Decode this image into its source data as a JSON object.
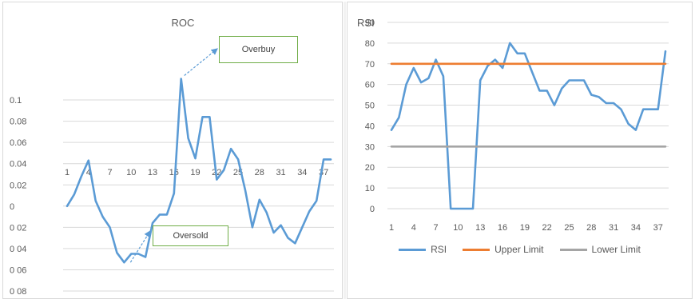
{
  "chart_data": [
    {
      "type": "line",
      "title": "ROC",
      "xlabel": "",
      "ylabel": "",
      "ylim": [
        -0.08,
        0.12
      ],
      "y_tick_values": [
        0.1,
        0.08,
        0.06,
        0.04,
        0.02,
        0,
        -0.02,
        -0.04,
        -0.06,
        -0.08
      ],
      "y_tick_labels": [
        "0.1",
        "0.08",
        "0.06",
        "0.04",
        "0.02",
        "0",
        "0 02",
        "0 04",
        "0 06",
        "0 08"
      ],
      "x_tick_labels": [
        "1",
        "4",
        "7",
        "10",
        "13",
        "16",
        "19",
        "22",
        "25",
        "28",
        "31",
        "34",
        "37"
      ],
      "grid": true,
      "series": [
        {
          "color": "#5b9bd5",
          "x": [
            1,
            2,
            3,
            4,
            5,
            6,
            7,
            8,
            9,
            10,
            11,
            12,
            13,
            14,
            15,
            16,
            17,
            18,
            19,
            20,
            21,
            22,
            23,
            24,
            25,
            26,
            27,
            28,
            29,
            30,
            31,
            32,
            33,
            34,
            35,
            36,
            37,
            38
          ],
          "values": [
            0.0,
            0.011,
            0.028,
            0.043,
            0.005,
            -0.01,
            -0.02,
            -0.044,
            -0.053,
            -0.045,
            -0.045,
            -0.048,
            -0.016,
            -0.008,
            -0.008,
            0.012,
            0.12,
            0.064,
            0.045,
            0.084,
            0.084,
            0.025,
            0.034,
            0.054,
            0.044,
            0.015,
            -0.02,
            0.006,
            -0.006,
            -0.025,
            -0.018,
            -0.03,
            -0.035,
            -0.02,
            -0.005,
            0.005,
            0.044,
            0.044
          ]
        }
      ],
      "annotations": [
        {
          "text": "Overbuy",
          "x": 17,
          "y": 0.12
        },
        {
          "text": "Oversold",
          "x": 9,
          "y": -0.053
        }
      ]
    },
    {
      "type": "line",
      "title": "RSI",
      "xlabel": "",
      "ylabel": "",
      "ylim": [
        0,
        90
      ],
      "y_tick_values": [
        0,
        10,
        20,
        30,
        40,
        50,
        60,
        70,
        80,
        90
      ],
      "y_tick_labels": [
        "0",
        "10",
        "20",
        "30",
        "40",
        "50",
        "60",
        "70",
        "80",
        "90"
      ],
      "x_tick_labels": [
        "1",
        "4",
        "7",
        "10",
        "13",
        "16",
        "19",
        "22",
        "25",
        "28",
        "31",
        "34",
        "37"
      ],
      "grid": true,
      "legend": "bottom",
      "series": [
        {
          "name": "RSI",
          "color": "#5b9bd5",
          "x": [
            1,
            2,
            3,
            4,
            5,
            6,
            7,
            8,
            9,
            10,
            11,
            12,
            13,
            14,
            15,
            16,
            17,
            18,
            19,
            20,
            21,
            22,
            23,
            24,
            25,
            26,
            27,
            28,
            29,
            30,
            31,
            32,
            33,
            34,
            35,
            36,
            37,
            38
          ],
          "values": [
            38,
            44,
            60,
            68,
            61,
            63,
            72,
            64,
            0,
            0,
            0,
            0,
            62,
            69,
            72,
            68,
            80,
            75,
            75,
            66,
            57,
            57,
            50,
            58,
            62,
            62,
            62,
            55,
            54,
            51,
            51,
            48,
            41,
            38,
            48,
            48,
            48,
            76
          ]
        },
        {
          "name": "Upper Limit",
          "color": "#ed7d31",
          "x": [
            1,
            38
          ],
          "values": [
            70,
            70
          ]
        },
        {
          "name": "Lower Limit",
          "color": "#a5a5a5",
          "x": [
            1,
            38
          ],
          "values": [
            30,
            30
          ]
        }
      ]
    }
  ]
}
